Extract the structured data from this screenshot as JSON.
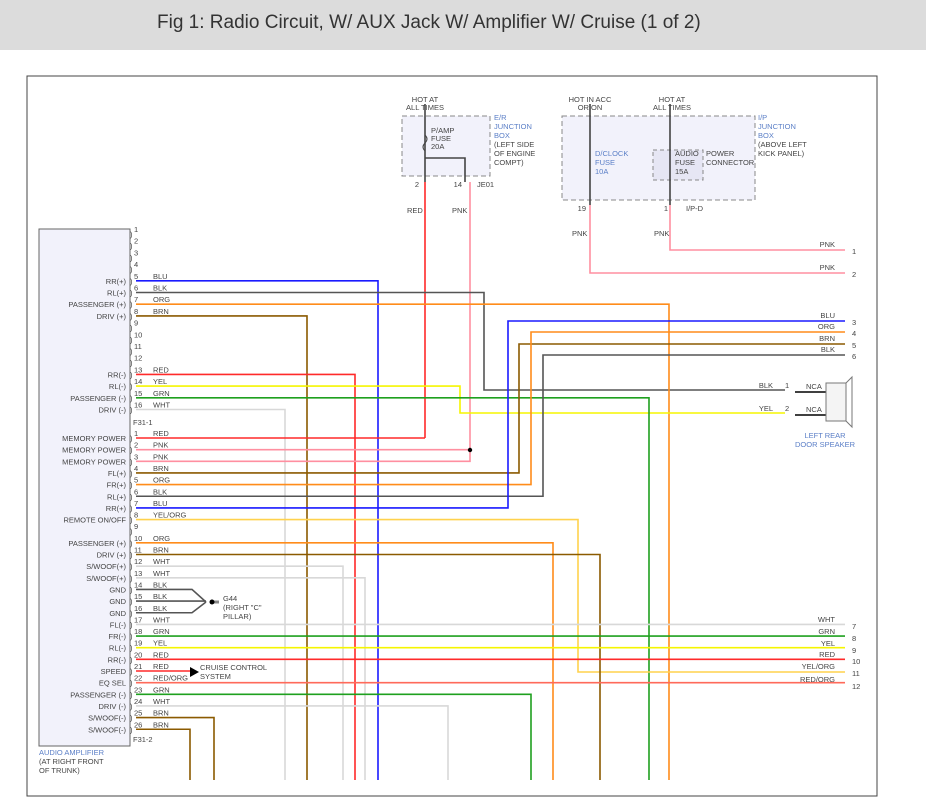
{
  "title": "Fig 1: Radio Circuit, W/ AUX Jack W/ Amplifier W/ Cruise (1 of 2)",
  "wire_colors": {
    "BLU": "#1a1aff",
    "BLK": "#555555",
    "ORG": "#ff8c1a",
    "BRN": "#8b5a00",
    "RED": "#ff2a2a",
    "YEL": "#f5f500",
    "GRN": "#1fa01f",
    "WHT": "#d8d8d8",
    "PNK": "#ff8fa0",
    "YEL/ORG": "#ffd24d",
    "RED/ORG": "#ff6a5a"
  },
  "er_box": {
    "hot_label": [
      "HOT AT",
      "ALL TIMES"
    ],
    "fuse": [
      "P/AMP",
      "FUSE",
      "20A"
    ],
    "name": [
      "E/R",
      "JUNCTION",
      "BOX"
    ],
    "location": [
      "(LEFT SIDE",
      "OF ENGINE",
      "COMPT)"
    ],
    "pins": [
      "2",
      "14"
    ],
    "connector": "JE01",
    "wires": [
      "RED",
      "PNK"
    ]
  },
  "ip_box": {
    "hot1": [
      "HOT IN ACC",
      "OR ON"
    ],
    "hot2": [
      "HOT AT",
      "ALL TIMES"
    ],
    "fuse1": [
      "D/CLOCK",
      "FUSE",
      "10A"
    ],
    "fuse2": [
      "AUDIO",
      "FUSE",
      "15A"
    ],
    "power_connector": [
      "POWER",
      "CONNECTOR"
    ],
    "name": [
      "I/P",
      "JUNCTION",
      "BOX"
    ],
    "location": [
      "(ABOVE LEFT",
      "KICK PANEL)"
    ],
    "pins": [
      "19",
      "1"
    ],
    "connector": "I/P-D",
    "wires": [
      "PNK",
      "PNK"
    ]
  },
  "amplifier": {
    "name": [
      "AUDIO AMPLIFIER",
      "(AT RIGHT FRONT",
      "OF TRUNK)"
    ],
    "connector1": "F31-1",
    "connector2": "F31-2",
    "c1": [
      {
        "pin": "1",
        "func": "",
        "color": ""
      },
      {
        "pin": "2",
        "func": "",
        "color": ""
      },
      {
        "pin": "3",
        "func": "",
        "color": ""
      },
      {
        "pin": "4",
        "func": "",
        "color": ""
      },
      {
        "pin": "5",
        "func": "RR(+)",
        "color": "BLU"
      },
      {
        "pin": "6",
        "func": "RL(+)",
        "color": "BLK"
      },
      {
        "pin": "7",
        "func": "PASSENGER (+)",
        "color": "ORG"
      },
      {
        "pin": "8",
        "func": "DRIV (+)",
        "color": "BRN"
      },
      {
        "pin": "9",
        "func": "",
        "color": ""
      },
      {
        "pin": "10",
        "func": "",
        "color": ""
      },
      {
        "pin": "11",
        "func": "",
        "color": ""
      },
      {
        "pin": "12",
        "func": "",
        "color": ""
      },
      {
        "pin": "13",
        "func": "RR(-)",
        "color": "RED"
      },
      {
        "pin": "14",
        "func": "RL(-)",
        "color": "YEL"
      },
      {
        "pin": "15",
        "func": "PASSENGER (-)",
        "color": "GRN"
      },
      {
        "pin": "16",
        "func": "DRIV (-)",
        "color": "WHT"
      }
    ],
    "c2": [
      {
        "pin": "1",
        "func": "MEMORY POWER",
        "color": "RED"
      },
      {
        "pin": "2",
        "func": "MEMORY POWER",
        "color": "PNK"
      },
      {
        "pin": "3",
        "func": "MEMORY POWER",
        "color": "PNK"
      },
      {
        "pin": "4",
        "func": "FL(+)",
        "color": "BRN"
      },
      {
        "pin": "5",
        "func": "FR(+)",
        "color": "ORG"
      },
      {
        "pin": "6",
        "func": "RL(+)",
        "color": "BLK"
      },
      {
        "pin": "7",
        "func": "RR(+)",
        "color": "BLU"
      },
      {
        "pin": "8",
        "func": "REMOTE ON/OFF",
        "color": "YEL/ORG"
      },
      {
        "pin": "9",
        "func": "",
        "color": ""
      },
      {
        "pin": "10",
        "func": "PASSENGER (+)",
        "color": "ORG"
      },
      {
        "pin": "11",
        "func": "DRIV (+)",
        "color": "BRN"
      },
      {
        "pin": "12",
        "func": "S/WOOF(+)",
        "color": "WHT"
      },
      {
        "pin": "13",
        "func": "S/WOOF(+)",
        "color": "WHT"
      },
      {
        "pin": "14",
        "func": "GND",
        "color": "BLK"
      },
      {
        "pin": "15",
        "func": "GND",
        "color": "BLK"
      },
      {
        "pin": "16",
        "func": "GND",
        "color": "BLK"
      },
      {
        "pin": "17",
        "func": "FL(-)",
        "color": "WHT"
      },
      {
        "pin": "18",
        "func": "FR(-)",
        "color": "GRN"
      },
      {
        "pin": "19",
        "func": "RL(-)",
        "color": "YEL"
      },
      {
        "pin": "20",
        "func": "RR(-)",
        "color": "RED"
      },
      {
        "pin": "21",
        "func": "SPEED",
        "color": "RED"
      },
      {
        "pin": "22",
        "func": "EQ SEL",
        "color": "RED/ORG"
      },
      {
        "pin": "23",
        "func": "PASSENGER (-)",
        "color": "GRN"
      },
      {
        "pin": "24",
        "func": "DRIV (-)",
        "color": "WHT"
      },
      {
        "pin": "25",
        "func": "S/WOOF(-)",
        "color": "BRN"
      },
      {
        "pin": "26",
        "func": "S/WOOF(-)",
        "color": "BRN"
      }
    ]
  },
  "ground": {
    "name": "G44",
    "location": [
      "(RIGHT \"C\"",
      "PILLAR)"
    ]
  },
  "cruise": [
    "CRUISE CONTROL",
    "SYSTEM"
  ],
  "speaker": {
    "name": [
      "LEFT REAR",
      "DOOR SPEAKER"
    ],
    "pins": [
      "1",
      "2"
    ],
    "wires": [
      "BLK",
      "YEL"
    ],
    "nca": "NCA"
  },
  "outputs": [
    {
      "num": "1",
      "color": "PNK"
    },
    {
      "num": "2",
      "color": "PNK"
    },
    {
      "num": "3",
      "color": "BLU"
    },
    {
      "num": "4",
      "color": "ORG"
    },
    {
      "num": "5",
      "color": "BRN"
    },
    {
      "num": "6",
      "color": "BLK"
    },
    {
      "num": "7",
      "color": "WHT"
    },
    {
      "num": "8",
      "color": "GRN"
    },
    {
      "num": "9",
      "color": "YEL"
    },
    {
      "num": "10",
      "color": "RED"
    },
    {
      "num": "11",
      "color": "YEL/ORG"
    },
    {
      "num": "12",
      "color": "RED/ORG"
    }
  ]
}
